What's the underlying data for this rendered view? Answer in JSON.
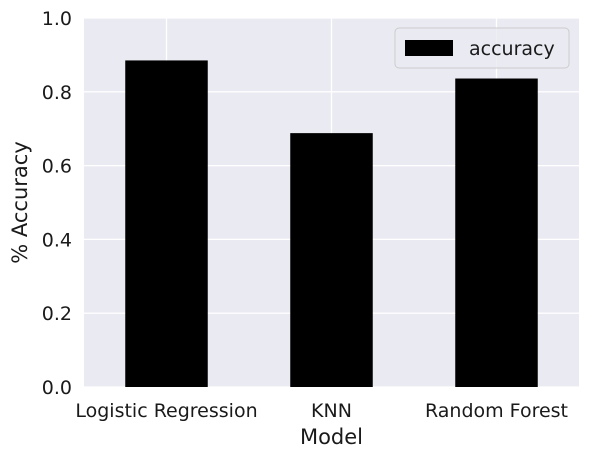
{
  "chart_data": {
    "type": "bar",
    "categories": [
      "Logistic Regression",
      "KNN",
      "Random Forest"
    ],
    "series": [
      {
        "name": "accuracy",
        "values": [
          0.885,
          0.688,
          0.836
        ]
      }
    ],
    "xlabel": "Model",
    "ylabel": "% Accuracy",
    "ylim": [
      0,
      1.0
    ],
    "yticks": [
      "0.0",
      "0.2",
      "0.4",
      "0.6",
      "0.8",
      "1.0"
    ],
    "grid": true,
    "legend_position": "top-right",
    "colors": {
      "bar": "#000000",
      "plot_background": "#eaeaf2",
      "grid": "#ffffff"
    }
  }
}
